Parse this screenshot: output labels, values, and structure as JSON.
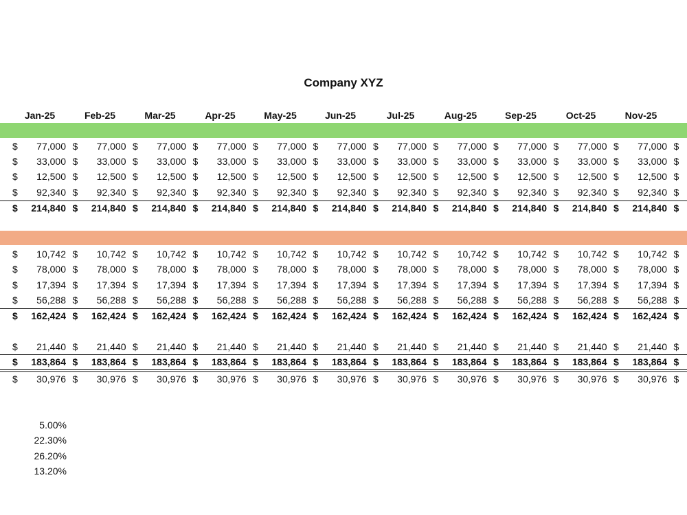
{
  "title": "Company XYZ",
  "currency_symbol": "$",
  "months": [
    "Jan-25",
    "Feb-25",
    "Mar-25",
    "Apr-25",
    "May-25",
    "Jun-25",
    "Jul-25",
    "Aug-25",
    "Sep-25",
    "Oct-25",
    "Nov-25"
  ],
  "rows": [
    {
      "bold": false,
      "values": [
        "77,000",
        "77,000",
        "77,000",
        "77,000",
        "77,000",
        "77,000",
        "77,000",
        "77,000",
        "77,000",
        "77,000",
        "77,000"
      ]
    },
    {
      "bold": false,
      "values": [
        "33,000",
        "33,000",
        "33,000",
        "33,000",
        "33,000",
        "33,000",
        "33,000",
        "33,000",
        "33,000",
        "33,000",
        "33,000"
      ]
    },
    {
      "bold": false,
      "values": [
        "12,500",
        "12,500",
        "12,500",
        "12,500",
        "12,500",
        "12,500",
        "12,500",
        "12,500",
        "12,500",
        "12,500",
        "12,500"
      ]
    },
    {
      "bold": false,
      "values": [
        "92,340",
        "92,340",
        "92,340",
        "92,340",
        "92,340",
        "92,340",
        "92,340",
        "92,340",
        "92,340",
        "92,340",
        "92,340"
      ]
    },
    {
      "bold": true,
      "values": [
        "214,840",
        "214,840",
        "214,840",
        "214,840",
        "214,840",
        "214,840",
        "214,840",
        "214,840",
        "214,840",
        "214,840",
        "214,840"
      ]
    },
    {
      "bold": false,
      "values": [
        "10,742",
        "10,742",
        "10,742",
        "10,742",
        "10,742",
        "10,742",
        "10,742",
        "10,742",
        "10,742",
        "10,742",
        "10,742"
      ]
    },
    {
      "bold": false,
      "values": [
        "78,000",
        "78,000",
        "78,000",
        "78,000",
        "78,000",
        "78,000",
        "78,000",
        "78,000",
        "78,000",
        "78,000",
        "78,000"
      ]
    },
    {
      "bold": false,
      "values": [
        "17,394",
        "17,394",
        "17,394",
        "17,394",
        "17,394",
        "17,394",
        "17,394",
        "17,394",
        "17,394",
        "17,394",
        "17,394"
      ]
    },
    {
      "bold": false,
      "values": [
        "56,288",
        "56,288",
        "56,288",
        "56,288",
        "56,288",
        "56,288",
        "56,288",
        "56,288",
        "56,288",
        "56,288",
        "56,288"
      ]
    },
    {
      "bold": true,
      "values": [
        "162,424",
        "162,424",
        "162,424",
        "162,424",
        "162,424",
        "162,424",
        "162,424",
        "162,424",
        "162,424",
        "162,424",
        "162,424"
      ]
    },
    {
      "bold": false,
      "values": [
        "21,440",
        "21,440",
        "21,440",
        "21,440",
        "21,440",
        "21,440",
        "21,440",
        "21,440",
        "21,440",
        "21,440",
        "21,440"
      ]
    },
    {
      "bold": true,
      "values": [
        "183,864",
        "183,864",
        "183,864",
        "183,864",
        "183,864",
        "183,864",
        "183,864",
        "183,864",
        "183,864",
        "183,864",
        "183,864"
      ]
    },
    {
      "bold": false,
      "values": [
        "30,976",
        "30,976",
        "30,976",
        "30,976",
        "30,976",
        "30,976",
        "30,976",
        "30,976",
        "30,976",
        "30,976",
        "30,976"
      ]
    }
  ],
  "percentages": [
    "5.00%",
    "22.30%",
    "26.20%",
    "13.20%"
  ]
}
